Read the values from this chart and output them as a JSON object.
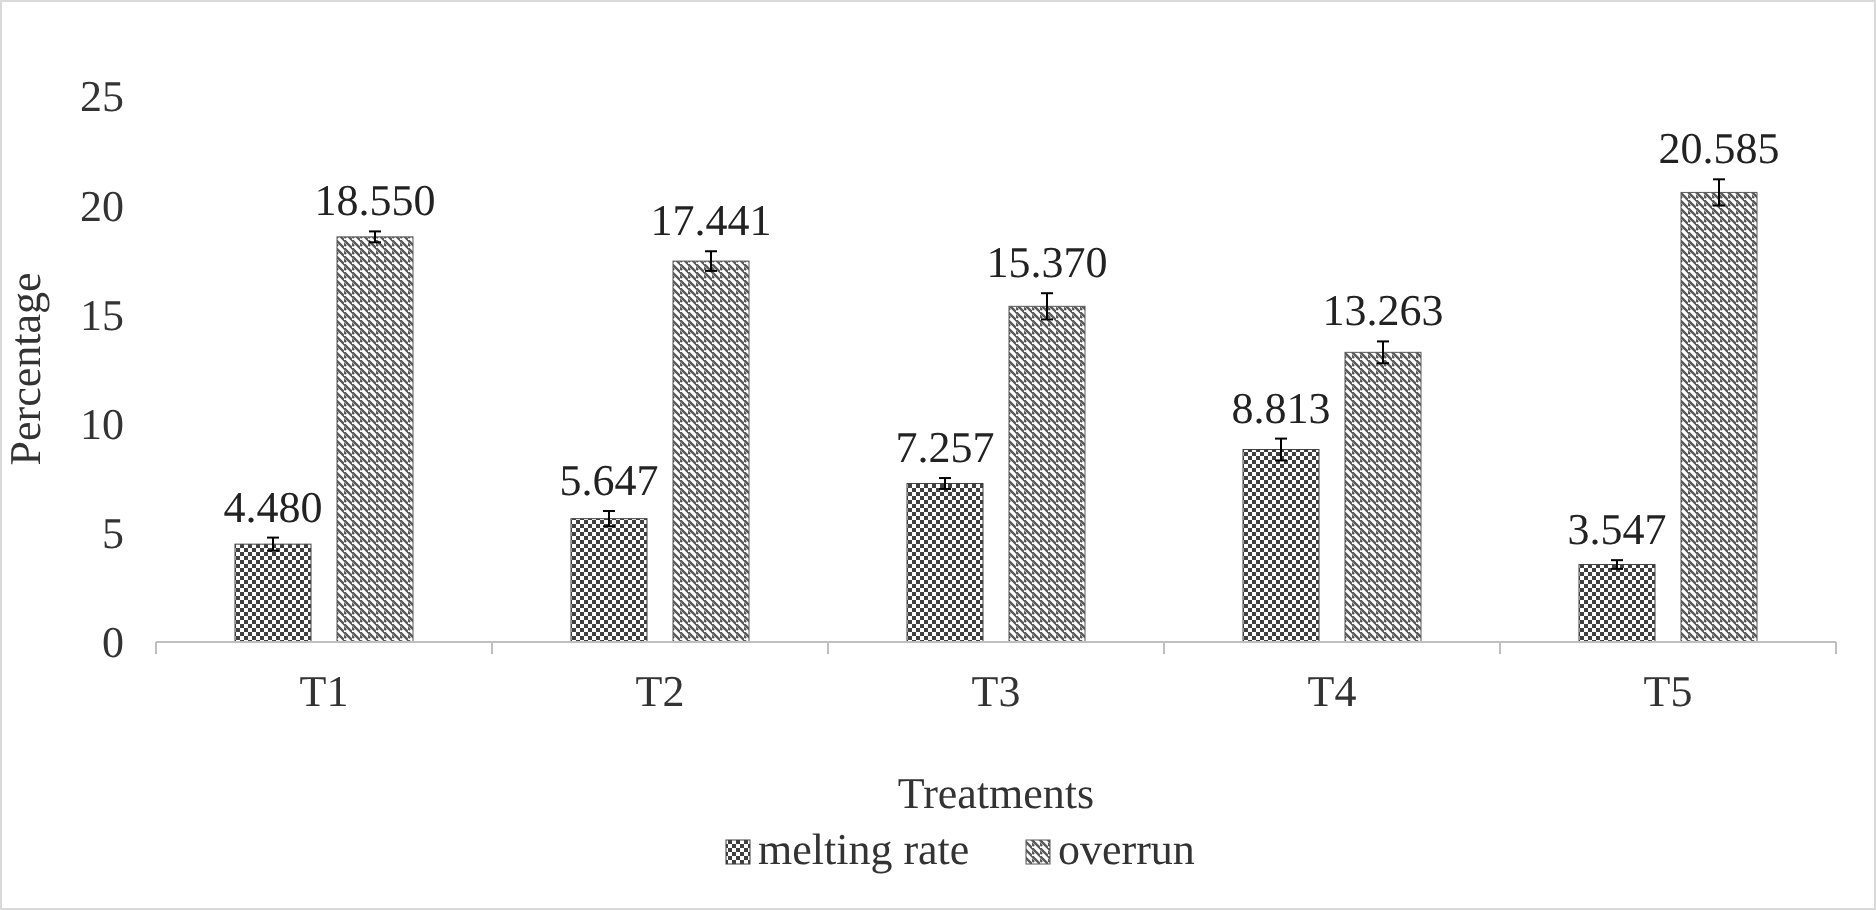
{
  "chart_data": {
    "type": "bar",
    "xlabel": "Treatments",
    "ylabel": "Percentage",
    "categories": [
      "T1",
      "T2",
      "T3",
      "T4",
      "T5"
    ],
    "series": [
      {
        "name": "melting rate",
        "color": "#404040",
        "values": [
          4.48,
          5.647,
          7.257,
          8.813,
          3.547
        ],
        "errors": [
          0.3,
          0.35,
          0.25,
          0.5,
          0.2
        ],
        "value_labels": [
          "4.480",
          "5.647",
          "7.257",
          "8.813",
          "3.547"
        ]
      },
      {
        "name": "overrun",
        "color": "#595959",
        "values": [
          18.55,
          17.441,
          15.37,
          13.263,
          20.585
        ],
        "errors": [
          0.25,
          0.45,
          0.6,
          0.5,
          0.6
        ],
        "value_labels": [
          "18.550",
          "17.441",
          "15.370",
          "13.263",
          "20.585"
        ]
      }
    ],
    "ylim": [
      0,
      25
    ],
    "yticks": [
      0,
      5,
      10,
      15,
      20,
      25
    ],
    "legend": "bottom",
    "grid": false
  }
}
